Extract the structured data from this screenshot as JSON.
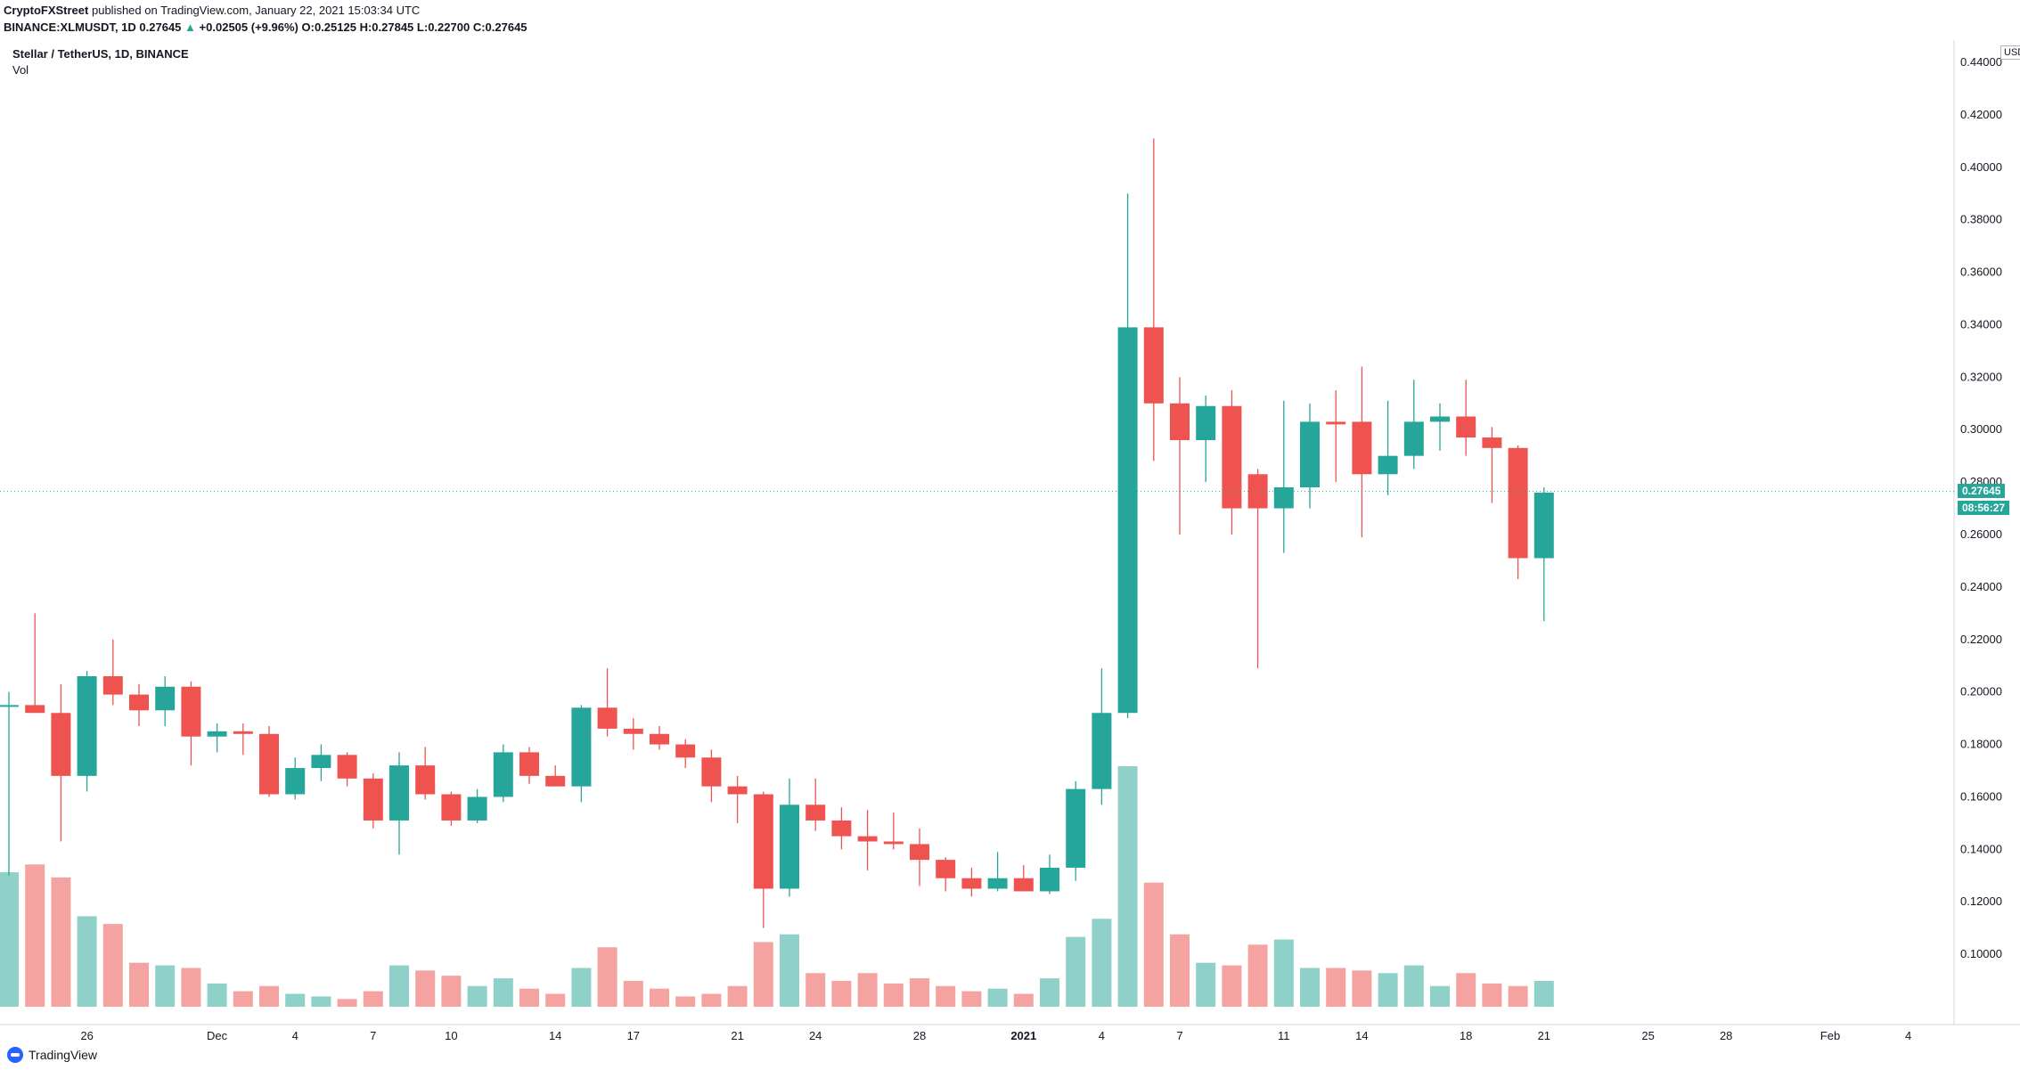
{
  "header": {
    "publisher": "CryptoFXStreet",
    "published_text": "published on TradingView.com, January 22, 2021 15:03:34 UTC",
    "symbol": "BINANCE:XLMUSDT, 1D",
    "last": "0.27645",
    "change": "+0.02505 (+9.96%)",
    "open_label": "O:",
    "open": "0.25125",
    "high_label": "H:",
    "high": "0.27845",
    "low_label": "L:",
    "low": "0.22700",
    "close_label": "C:",
    "close": "0.27645"
  },
  "legend": {
    "title": "Stellar / TetherUS, 1D, BINANCE",
    "volume_label": "Vol"
  },
  "axis": {
    "unit": "USDT",
    "current_price": "0.27645",
    "countdown": "08:56:27"
  },
  "footer": {
    "brand": "TradingView"
  },
  "colors": {
    "up": "#26a69a",
    "down": "#ef5350",
    "up_vol": "#8fd1c8",
    "down_vol": "#f5a3a0"
  },
  "chart_data": {
    "type": "candlestick",
    "ylim": [
      0.08,
      0.44
    ],
    "y_ticks": [
      "0.44000",
      "0.42000",
      "0.40000",
      "0.38000",
      "0.36000",
      "0.34000",
      "0.32000",
      "0.30000",
      "0.28000",
      "0.26000",
      "0.24000",
      "0.22000",
      "0.20000",
      "0.18000",
      "0.16000",
      "0.14000",
      "0.12000",
      "0.10000"
    ],
    "x_tick_labels": [
      {
        "label": "26",
        "day": 3
      },
      {
        "label": "Dec",
        "day": 8
      },
      {
        "label": "4",
        "day": 11
      },
      {
        "label": "7",
        "day": 14
      },
      {
        "label": "10",
        "day": 17
      },
      {
        "label": "14",
        "day": 21
      },
      {
        "label": "17",
        "day": 24
      },
      {
        "label": "21",
        "day": 28
      },
      {
        "label": "24",
        "day": 31
      },
      {
        "label": "28",
        "day": 35
      },
      {
        "label": "2021",
        "day": 39
      },
      {
        "label": "4",
        "day": 42
      },
      {
        "label": "7",
        "day": 45
      },
      {
        "label": "11",
        "day": 49
      },
      {
        "label": "14",
        "day": 52
      },
      {
        "label": "18",
        "day": 56
      },
      {
        "label": "21",
        "day": 59
      },
      {
        "label": "25",
        "day": 63
      },
      {
        "label": "28",
        "day": 66
      },
      {
        "label": "Feb",
        "day": 70
      },
      {
        "label": "4",
        "day": 73
      }
    ],
    "ohlc": [
      [
        0.195,
        0.2,
        0.13,
        0.195
      ],
      [
        0.195,
        0.23,
        0.192,
        0.192
      ],
      [
        0.192,
        0.203,
        0.143,
        0.168
      ],
      [
        0.168,
        0.208,
        0.162,
        0.206
      ],
      [
        0.206,
        0.22,
        0.195,
        0.199
      ],
      [
        0.199,
        0.203,
        0.187,
        0.193
      ],
      [
        0.193,
        0.206,
        0.187,
        0.202
      ],
      [
        0.202,
        0.204,
        0.172,
        0.183
      ],
      [
        0.183,
        0.188,
        0.177,
        0.185
      ],
      [
        0.185,
        0.188,
        0.176,
        0.184
      ],
      [
        0.184,
        0.187,
        0.16,
        0.161
      ],
      [
        0.161,
        0.175,
        0.159,
        0.171
      ],
      [
        0.171,
        0.18,
        0.166,
        0.176
      ],
      [
        0.176,
        0.177,
        0.164,
        0.167
      ],
      [
        0.167,
        0.169,
        0.148,
        0.151
      ],
      [
        0.151,
        0.177,
        0.138,
        0.172
      ],
      [
        0.172,
        0.179,
        0.159,
        0.161
      ],
      [
        0.161,
        0.162,
        0.149,
        0.151
      ],
      [
        0.151,
        0.163,
        0.15,
        0.16
      ],
      [
        0.16,
        0.18,
        0.158,
        0.177
      ],
      [
        0.177,
        0.179,
        0.165,
        0.168
      ],
      [
        0.168,
        0.172,
        0.164,
        0.164
      ],
      [
        0.164,
        0.195,
        0.158,
        0.194
      ],
      [
        0.194,
        0.209,
        0.183,
        0.186
      ],
      [
        0.186,
        0.19,
        0.178,
        0.184
      ],
      [
        0.184,
        0.187,
        0.178,
        0.18
      ],
      [
        0.18,
        0.182,
        0.171,
        0.175
      ],
      [
        0.175,
        0.178,
        0.158,
        0.164
      ],
      [
        0.164,
        0.168,
        0.15,
        0.161
      ],
      [
        0.161,
        0.162,
        0.11,
        0.125
      ],
      [
        0.125,
        0.167,
        0.122,
        0.157
      ],
      [
        0.157,
        0.167,
        0.147,
        0.151
      ],
      [
        0.151,
        0.156,
        0.14,
        0.145
      ],
      [
        0.145,
        0.155,
        0.132,
        0.143
      ],
      [
        0.143,
        0.154,
        0.14,
        0.142
      ],
      [
        0.142,
        0.148,
        0.126,
        0.136
      ],
      [
        0.136,
        0.137,
        0.124,
        0.129
      ],
      [
        0.129,
        0.133,
        0.122,
        0.125
      ],
      [
        0.125,
        0.139,
        0.124,
        0.129
      ],
      [
        0.129,
        0.134,
        0.124,
        0.124
      ],
      [
        0.124,
        0.138,
        0.123,
        0.133
      ],
      [
        0.133,
        0.166,
        0.128,
        0.163
      ],
      [
        0.163,
        0.209,
        0.157,
        0.192
      ],
      [
        0.192,
        0.39,
        0.19,
        0.339
      ],
      [
        0.339,
        0.411,
        0.288,
        0.31
      ],
      [
        0.31,
        0.32,
        0.26,
        0.296
      ],
      [
        0.296,
        0.313,
        0.28,
        0.309
      ],
      [
        0.309,
        0.315,
        0.26,
        0.27
      ],
      [
        0.283,
        0.285,
        0.209,
        0.27
      ],
      [
        0.27,
        0.311,
        0.253,
        0.278
      ],
      [
        0.278,
        0.31,
        0.27,
        0.303
      ],
      [
        0.303,
        0.315,
        0.28,
        0.302
      ],
      [
        0.303,
        0.324,
        0.259,
        0.283
      ],
      [
        0.283,
        0.311,
        0.275,
        0.29
      ],
      [
        0.29,
        0.319,
        0.285,
        0.303
      ],
      [
        0.303,
        0.31,
        0.292,
        0.305
      ],
      [
        0.305,
        0.319,
        0.29,
        0.297
      ],
      [
        0.297,
        0.301,
        0.272,
        0.293
      ],
      [
        0.293,
        0.294,
        0.243,
        0.251
      ],
      [
        0.251,
        0.278,
        0.227,
        0.276
      ]
    ],
    "volume": [
      0.132,
      0.135,
      0.13,
      0.115,
      0.112,
      0.097,
      0.096,
      0.095,
      0.089,
      0.086,
      0.088,
      0.085,
      0.084,
      0.083,
      0.086,
      0.096,
      0.094,
      0.092,
      0.088,
      0.091,
      0.087,
      0.085,
      0.095,
      0.103,
      0.09,
      0.087,
      0.084,
      0.085,
      0.088,
      0.105,
      0.108,
      0.093,
      0.09,
      0.093,
      0.089,
      0.091,
      0.088,
      0.086,
      0.087,
      0.085,
      0.091,
      0.107,
      0.114,
      0.173,
      0.128,
      0.108,
      0.097,
      0.096,
      0.104,
      0.106,
      0.095,
      0.095,
      0.094,
      0.093,
      0.096,
      0.088,
      0.093,
      0.089,
      0.088,
      0.09
    ]
  }
}
